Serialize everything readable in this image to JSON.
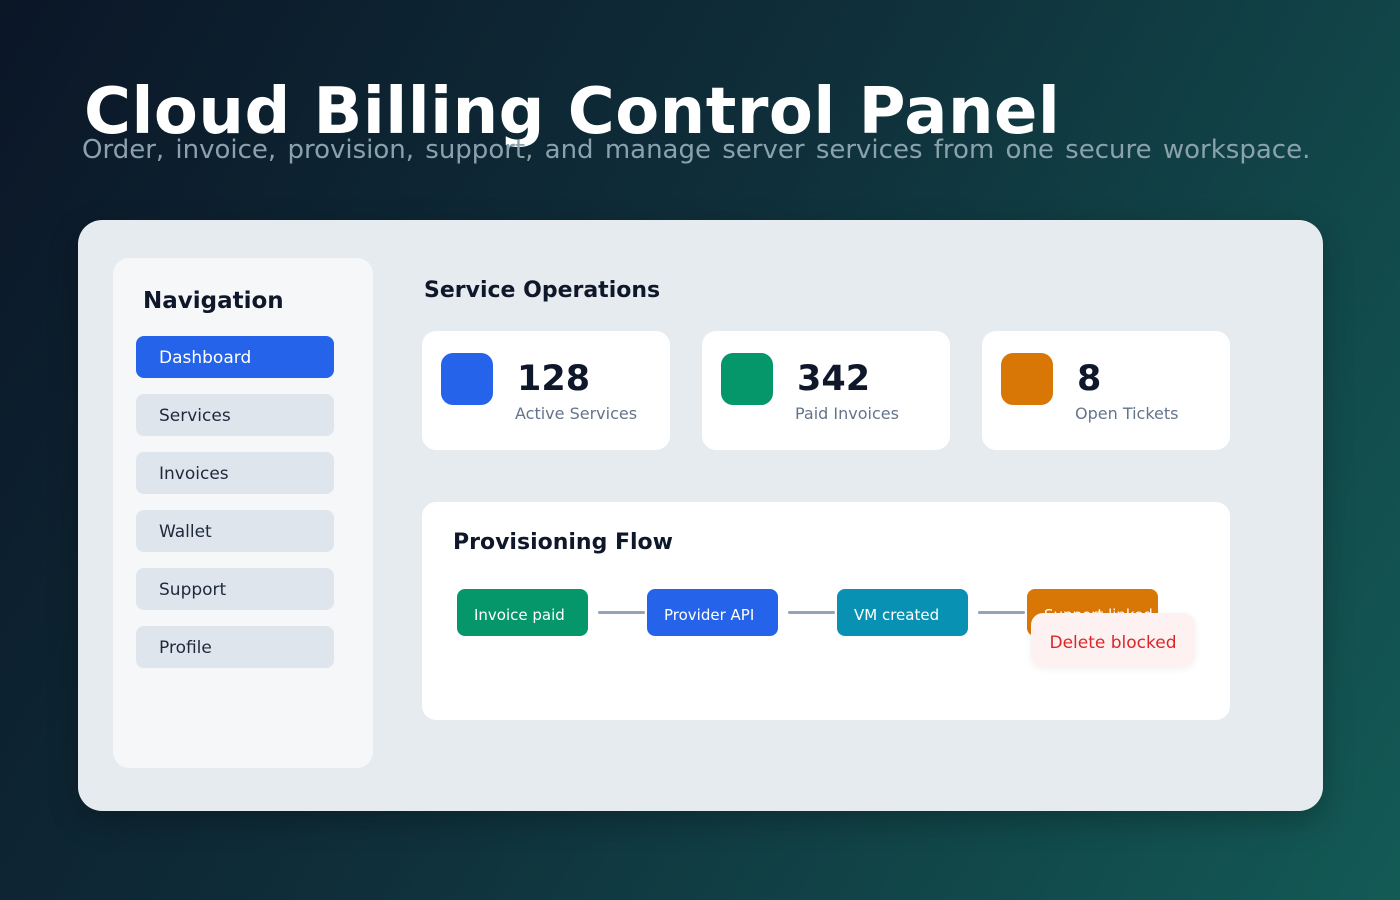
{
  "header": {
    "title": "Cloud Billing Control Panel",
    "subtitle": "Order, invoice, provision, support, and manage server services from one secure workspace."
  },
  "sidebar": {
    "title": "Navigation",
    "items": [
      {
        "label": "Dashboard",
        "active": true
      },
      {
        "label": "Services"
      },
      {
        "label": "Invoices"
      },
      {
        "label": "Wallet"
      },
      {
        "label": "Support"
      },
      {
        "label": "Profile"
      }
    ]
  },
  "main": {
    "section_title": "Service Operations",
    "stats": [
      {
        "value": "128",
        "label": "Active Services",
        "color": "#2563eb"
      },
      {
        "value": "342",
        "label": "Paid Invoices",
        "color": "#059669"
      },
      {
        "value": "8",
        "label": "Open Tickets",
        "color": "#d97706"
      }
    ],
    "flow": {
      "title": "Provisioning Flow",
      "steps": [
        {
          "label": "Invoice paid",
          "color": "#059669"
        },
        {
          "label": "Provider API",
          "color": "#2563eb"
        },
        {
          "label": "VM created",
          "color": "#0891b2"
        },
        {
          "label": "Support linked",
          "color": "#d97706"
        }
      ],
      "toast": {
        "label": "Delete blocked",
        "color": "#dc2626"
      }
    }
  }
}
